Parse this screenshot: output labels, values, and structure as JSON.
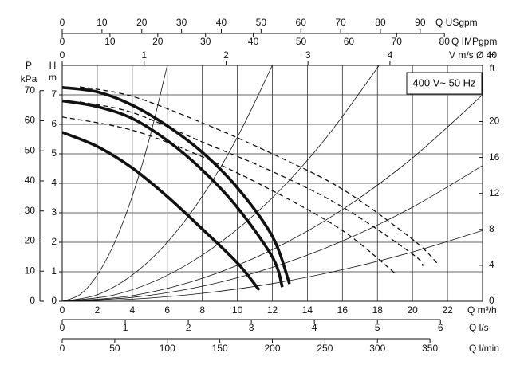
{
  "chart_data": {
    "type": "line",
    "annotation": "400 V~ 50 Hz",
    "xlabel": "Q m³/h",
    "xlim": [
      0,
      24
    ],
    "xticks": [
      0,
      2,
      4,
      6,
      8,
      10,
      12,
      14,
      16,
      18,
      20,
      22
    ],
    "ylabel": "H",
    "yunit": "m",
    "ylim": [
      0,
      8
    ],
    "yticks": [
      0,
      1,
      2,
      3,
      4,
      5,
      6,
      7
    ],
    "grid": true,
    "extra_axes": [
      {
        "side": "left",
        "label": "P",
        "unit": "kPa",
        "lim": [
          0,
          78.4
        ],
        "ticks": [
          0,
          10,
          20,
          30,
          40,
          50,
          60,
          70
        ]
      },
      {
        "side": "right",
        "label": "H",
        "unit": "ft",
        "lim": [
          0,
          26.25
        ],
        "ticks": [
          0,
          4,
          8,
          12,
          16,
          20
        ]
      },
      {
        "side": "top",
        "label": "Q USgpm",
        "lim": [
          0,
          105.67
        ],
        "ticks": [
          0,
          10,
          20,
          30,
          40,
          50,
          60,
          70,
          80,
          90
        ]
      },
      {
        "side": "top",
        "label": "Q IMPgpm",
        "lim": [
          0,
          87.98
        ],
        "ticks": [
          0,
          10,
          20,
          30,
          40,
          50,
          60,
          70,
          80
        ]
      },
      {
        "side": "top",
        "label": "V m/s Ø 40",
        "lim": [
          0,
          5.13
        ],
        "ticks": [
          0,
          1,
          2,
          3,
          4
        ]
      },
      {
        "side": "bottom",
        "label": "Q l/s",
        "lim": [
          0,
          6.667
        ],
        "ticks": [
          0,
          1,
          2,
          3,
          4,
          5,
          6
        ]
      },
      {
        "side": "bottom",
        "label": "Q l/min",
        "lim": [
          0,
          400
        ],
        "ticks": [
          0,
          50,
          100,
          150,
          200,
          250,
          300,
          350
        ]
      }
    ],
    "series": [
      {
        "style": "thick",
        "color": "#111111",
        "x": [
          0,
          2,
          4,
          6,
          8,
          10,
          12,
          12.98
        ],
        "values": [
          7.25,
          7.1,
          6.65,
          5.95,
          5.05,
          3.85,
          2.2,
          0.59
        ]
      },
      {
        "style": "thick",
        "color": "#111111",
        "x": [
          0,
          2,
          4,
          6,
          8,
          10,
          12,
          12.57
        ],
        "values": [
          6.8,
          6.6,
          6.2,
          5.45,
          4.45,
          3.18,
          1.5,
          0.48
        ]
      },
      {
        "style": "thick",
        "color": "#111111",
        "x": [
          0,
          2,
          4,
          6,
          8,
          10,
          11.25
        ],
        "values": [
          5.73,
          5.25,
          4.52,
          3.55,
          2.45,
          1.3,
          0.38
        ]
      },
      {
        "style": "dashed",
        "color": "#111111",
        "x": [
          1,
          4,
          8,
          12,
          16,
          20,
          21.4
        ],
        "values": [
          7.27,
          6.95,
          6.05,
          5.0,
          3.8,
          2.1,
          1.3
        ]
      },
      {
        "style": "dashed",
        "color": "#111111",
        "x": [
          1,
          4,
          8,
          12,
          16,
          20,
          20.6
        ],
        "values": [
          6.76,
          6.4,
          5.4,
          4.4,
          3.2,
          1.6,
          1.2
        ]
      },
      {
        "style": "dashed",
        "color": "#111111",
        "x": [
          0,
          4,
          8,
          12,
          16,
          19
        ],
        "values": [
          6.25,
          5.8,
          4.9,
          3.75,
          2.4,
          0.95
        ]
      },
      {
        "style": "thin",
        "color": "#111111",
        "x": [
          0,
          1,
          2,
          3,
          4,
          5,
          6
        ],
        "values": [
          0,
          0.22,
          0.89,
          2.0,
          3.56,
          5.56,
          8.0
        ]
      },
      {
        "style": "thin",
        "color": "#111111",
        "x": [
          0,
          2,
          4,
          6,
          8,
          10,
          12
        ],
        "values": [
          0,
          0.22,
          0.89,
          2.0,
          3.56,
          5.56,
          8.0
        ]
      },
      {
        "style": "thin",
        "color": "#111111",
        "x": [
          0,
          3,
          6,
          9,
          12,
          15,
          18.1
        ],
        "values": [
          0,
          0.22,
          0.88,
          1.98,
          3.51,
          5.49,
          8.0
        ]
      },
      {
        "style": "thin",
        "color": "#111111",
        "x": [
          0,
          4,
          8,
          12,
          16,
          20,
          24
        ],
        "values": [
          0,
          0.19,
          0.78,
          1.75,
          3.11,
          4.86,
          7.0
        ]
      },
      {
        "style": "thin",
        "color": "#111111",
        "x": [
          0,
          4,
          8,
          12,
          16,
          20,
          24
        ],
        "values": [
          0,
          0.13,
          0.51,
          1.15,
          2.04,
          3.19,
          4.6
        ]
      },
      {
        "style": "thin",
        "color": "#111111",
        "x": [
          0,
          4,
          8,
          12,
          16,
          20,
          24
        ],
        "values": [
          0,
          0.07,
          0.27,
          0.6,
          1.07,
          1.67,
          2.4
        ]
      }
    ]
  }
}
